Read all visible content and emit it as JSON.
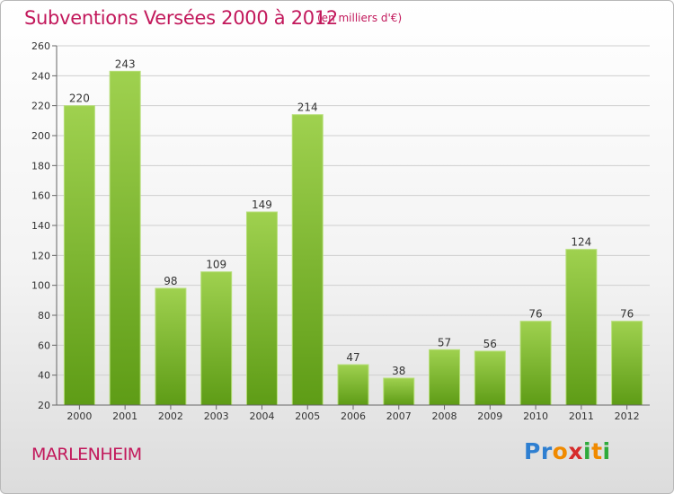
{
  "header": {
    "title": "Subventions Versées 2000 à 2012",
    "subtitle": "(en milliers d'€)"
  },
  "footer": {
    "commune": "MARLENHEIM",
    "logo_text": "Proxiti"
  },
  "colors": {
    "title": "#c2185b",
    "bar_top": "#9fd14f",
    "bar_bottom": "#5e9c16",
    "gridline": "#cfcfcf"
  },
  "chart_data": {
    "type": "bar",
    "title": "Subventions Versées 2000 à 2012",
    "subtitle": "(en milliers d'€)",
    "categories": [
      "2000",
      "2001",
      "2002",
      "2003",
      "2004",
      "2005",
      "2006",
      "2007",
      "2008",
      "2009",
      "2010",
      "2011",
      "2012"
    ],
    "values": [
      220,
      243,
      98,
      109,
      149,
      214,
      47,
      38,
      57,
      56,
      76,
      124,
      76
    ],
    "data_labels": [
      "220",
      "243",
      "98",
      "109",
      "149",
      "214",
      "47",
      "38",
      "57",
      "56",
      "76",
      "124",
      "76"
    ],
    "ylim": [
      20,
      260
    ],
    "yticks": [
      20,
      40,
      60,
      80,
      100,
      120,
      140,
      160,
      180,
      200,
      220,
      240,
      260
    ],
    "grid": true,
    "legend": "none"
  }
}
